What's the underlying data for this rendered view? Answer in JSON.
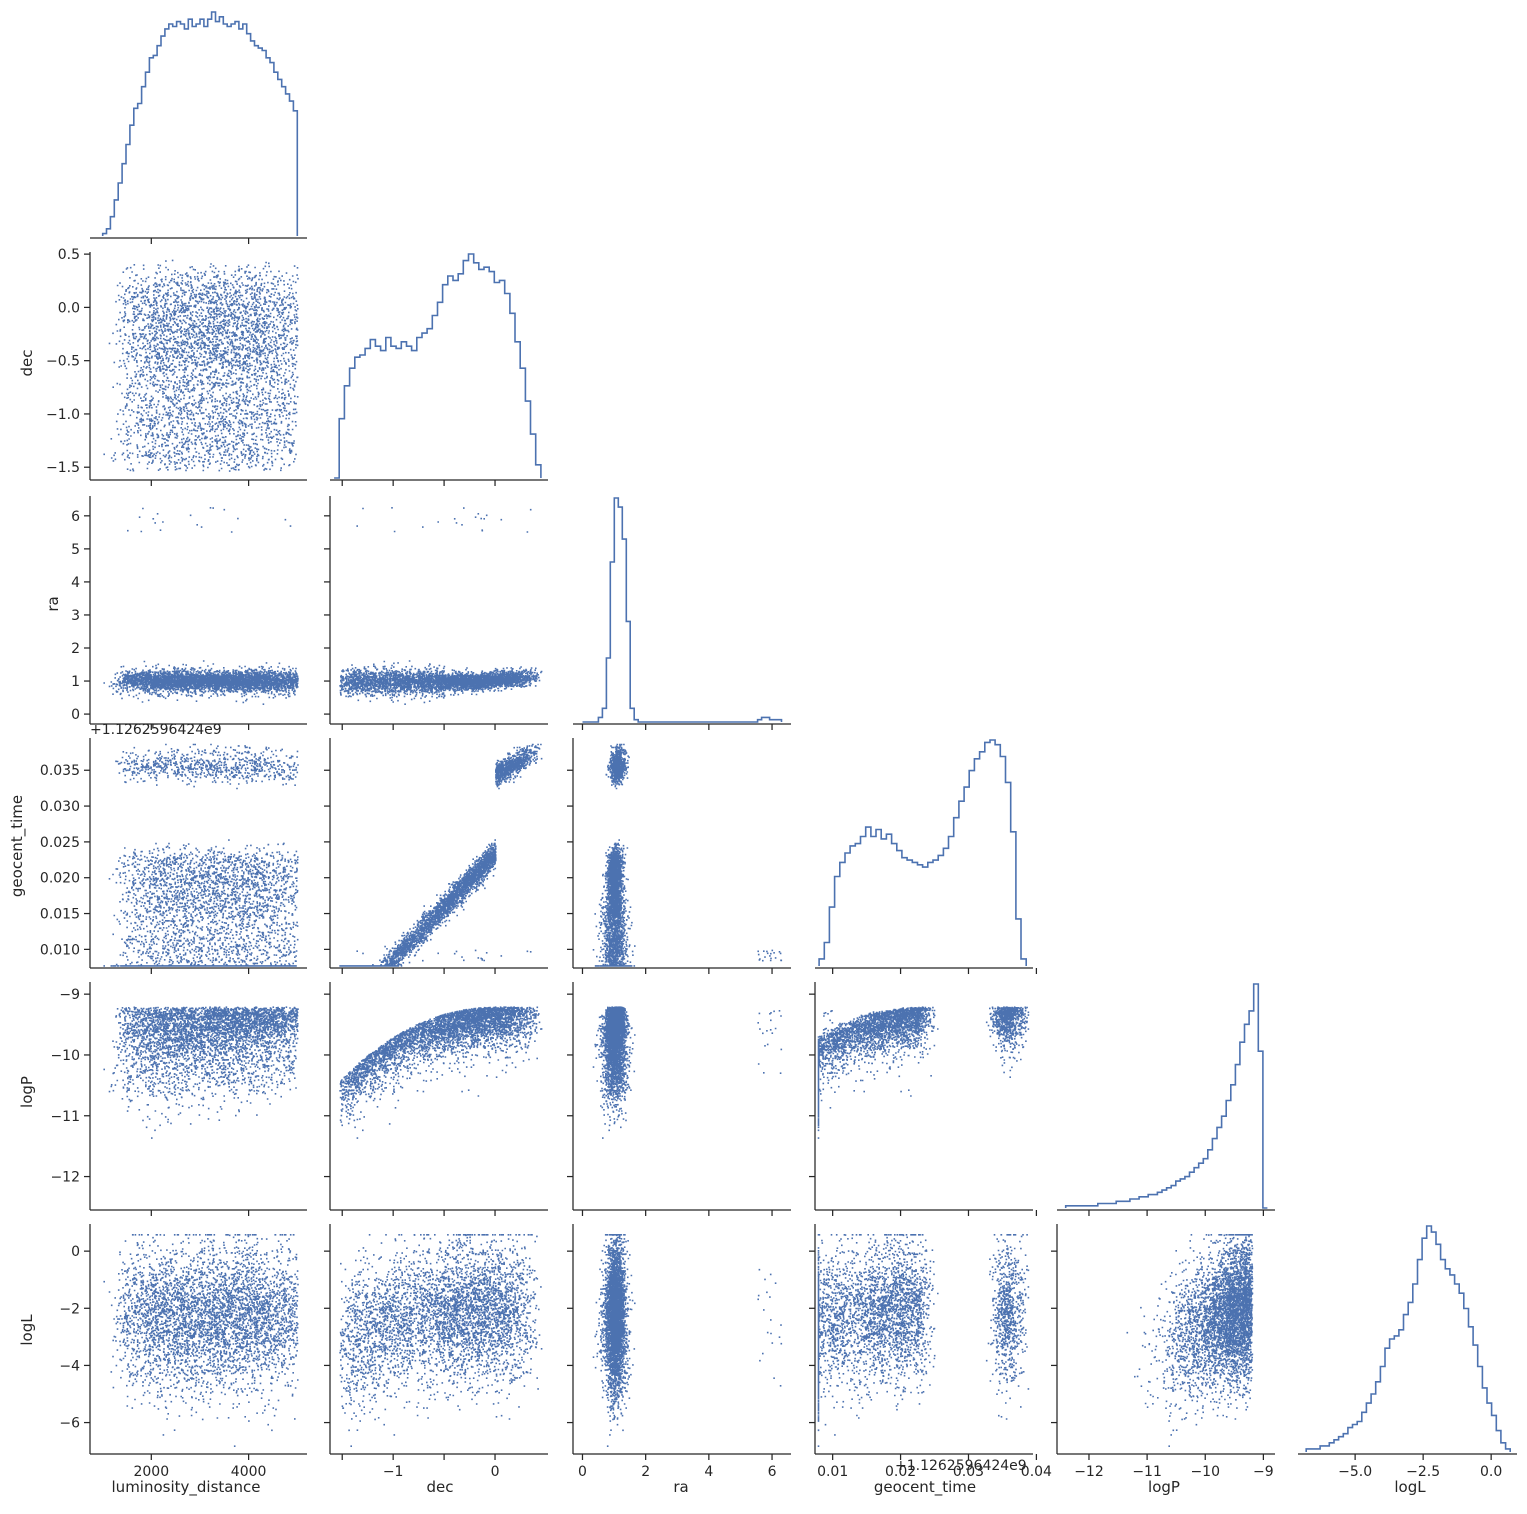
{
  "chart_data": {
    "type": "pairplot",
    "corner": true,
    "diag_kind": "step-histogram",
    "offdiag_kind": "scatter",
    "color": "#4c72b0",
    "variables": [
      "luminosity_distance",
      "dec",
      "ra",
      "geocent_time",
      "logP",
      "logL"
    ],
    "variable_labels": {
      "luminosity_distance": "luminosity_distance",
      "dec": "dec",
      "ra": "ra",
      "geocent_time": "geocent_time",
      "logP": "logP",
      "logL": "logL"
    },
    "axes": {
      "luminosity_distance": {
        "range": [
          740,
          5200
        ],
        "ticks": [
          2000,
          4000
        ],
        "tick_labels": [
          "2000",
          "4000"
        ]
      },
      "dec": {
        "range": [
          -1.62,
          0.52
        ],
        "ticks": [
          -1.5,
          -1.0,
          -0.5,
          0.0,
          0.5
        ],
        "tick_labels": [
          "−1.5",
          "−1.0",
          "−0.5",
          "0.0",
          "0.5"
        ],
        "x_ticks": [
          -1,
          0
        ],
        "x_tick_labels": [
          "−1",
          "0"
        ],
        "x_minor": [
          -1.5,
          -0.5
        ]
      },
      "ra": {
        "range": [
          -0.3,
          6.6
        ],
        "ticks": [
          0,
          1,
          2,
          3,
          4,
          5,
          6
        ],
        "tick_labels": [
          "0",
          "1",
          "2",
          "3",
          "4",
          "5",
          "6"
        ],
        "x_ticks": [
          0,
          2,
          4,
          6
        ],
        "x_tick_labels": [
          "0",
          "2",
          "4",
          "6"
        ]
      },
      "geocent_time": {
        "range": [
          0.0074,
          0.0395
        ],
        "ticks": [
          0.01,
          0.015,
          0.02,
          0.025,
          0.03,
          0.035,
          0.04
        ],
        "tick_labels": [
          "0.010",
          "0.015",
          "0.020",
          "0.025",
          "0.030",
          "0.035",
          "0.040"
        ],
        "x_ticks": [
          0.01,
          0.02,
          0.03,
          0.04
        ],
        "x_tick_labels": [
          "0.01",
          "0.02",
          "0.03",
          "0.04"
        ],
        "offset": "+1.1262596424e9"
      },
      "logP": {
        "range": [
          -12.55,
          -8.8
        ],
        "ticks": [
          -12,
          -11,
          -10,
          -9
        ],
        "tick_labels": [
          "−12",
          "−11",
          "−10",
          "−9"
        ]
      },
      "logL": {
        "range": [
          -7.1,
          0.95
        ],
        "ticks": [
          -6,
          -4,
          -2,
          0
        ],
        "tick_labels": [
          "−6",
          "−4",
          "−2",
          "0"
        ],
        "x_ticks": [
          -5.0,
          -2.5,
          0.0
        ],
        "x_tick_labels": [
          "−5.0",
          "−2.5",
          "0.0"
        ]
      }
    },
    "histograms": {
      "luminosity_distance": {
        "edges_range": [
          1000,
          5000
        ],
        "counts": [
          1,
          3,
          8,
          15,
          22,
          30,
          38,
          46,
          53,
          55,
          62,
          68,
          74,
          75,
          79,
          83,
          86,
          88,
          87,
          89,
          88,
          86,
          90,
          87,
          88,
          90,
          87,
          90,
          93,
          89,
          91,
          88,
          87,
          88,
          89,
          86,
          88,
          84,
          81,
          79,
          78,
          77,
          74,
          72,
          68,
          65,
          62,
          59,
          56,
          52
        ]
      },
      "dec": {
        "edges_range": [
          -1.58,
          0.45
        ],
        "counts": [
          0,
          27,
          42,
          50,
          55,
          56,
          59,
          63,
          60,
          58,
          64,
          60,
          59,
          62,
          60,
          58,
          64,
          66,
          68,
          74,
          80,
          88,
          92,
          90,
          93,
          99,
          102,
          98,
          95,
          96,
          94,
          89,
          90,
          84,
          75,
          62,
          50,
          35,
          20,
          6
        ]
      },
      "ra": {
        "edges_range": [
          0.0,
          6.3
        ],
        "counts": [
          0,
          0,
          0,
          0,
          2,
          6,
          28,
          70,
          98,
          94,
          80,
          44,
          6,
          1,
          0,
          0,
          0,
          0,
          0,
          0,
          0,
          0,
          0,
          0,
          0,
          0,
          0,
          0,
          0,
          0,
          0,
          0,
          0,
          0,
          0,
          0,
          0,
          0,
          0,
          0,
          0,
          0,
          0,
          0,
          1,
          2,
          2,
          1,
          1,
          1
        ]
      },
      "geocent_time": {
        "edges_range": [
          0.008,
          0.0385
        ],
        "counts": [
          3,
          10,
          25,
          38,
          44,
          48,
          51,
          52,
          55,
          59,
          55,
          58,
          54,
          56,
          52,
          49,
          46,
          45,
          44,
          43,
          42,
          44,
          45,
          47,
          50,
          55,
          63,
          70,
          76,
          83,
          88,
          91,
          95,
          96,
          94,
          89,
          78,
          57,
          20,
          3
        ]
      },
      "logP": {
        "edges_range": [
          -12.4,
          -8.93
        ],
        "counts": [
          1,
          1,
          1,
          1,
          1,
          1,
          1,
          2,
          2,
          2,
          2,
          3,
          3,
          3,
          4,
          4,
          5,
          5,
          6,
          6,
          7,
          8,
          9,
          10,
          12,
          13,
          14,
          16,
          18,
          20,
          22,
          26,
          31,
          36,
          41,
          48,
          55,
          64,
          74,
          82,
          88,
          100,
          70,
          0
        ]
      },
      "logL": {
        "edges_range": [
          -6.8,
          0.7
        ],
        "counts": [
          1,
          1,
          1,
          2,
          2,
          3,
          4,
          5,
          6,
          8,
          9,
          10,
          13,
          16,
          19,
          23,
          28,
          34,
          37,
          38,
          40,
          45,
          49,
          55,
          63,
          70,
          74,
          72,
          68,
          63,
          60,
          58,
          55,
          52,
          47,
          41,
          35,
          28,
          21,
          16,
          12,
          7,
          3,
          1
        ]
      }
    }
  }
}
